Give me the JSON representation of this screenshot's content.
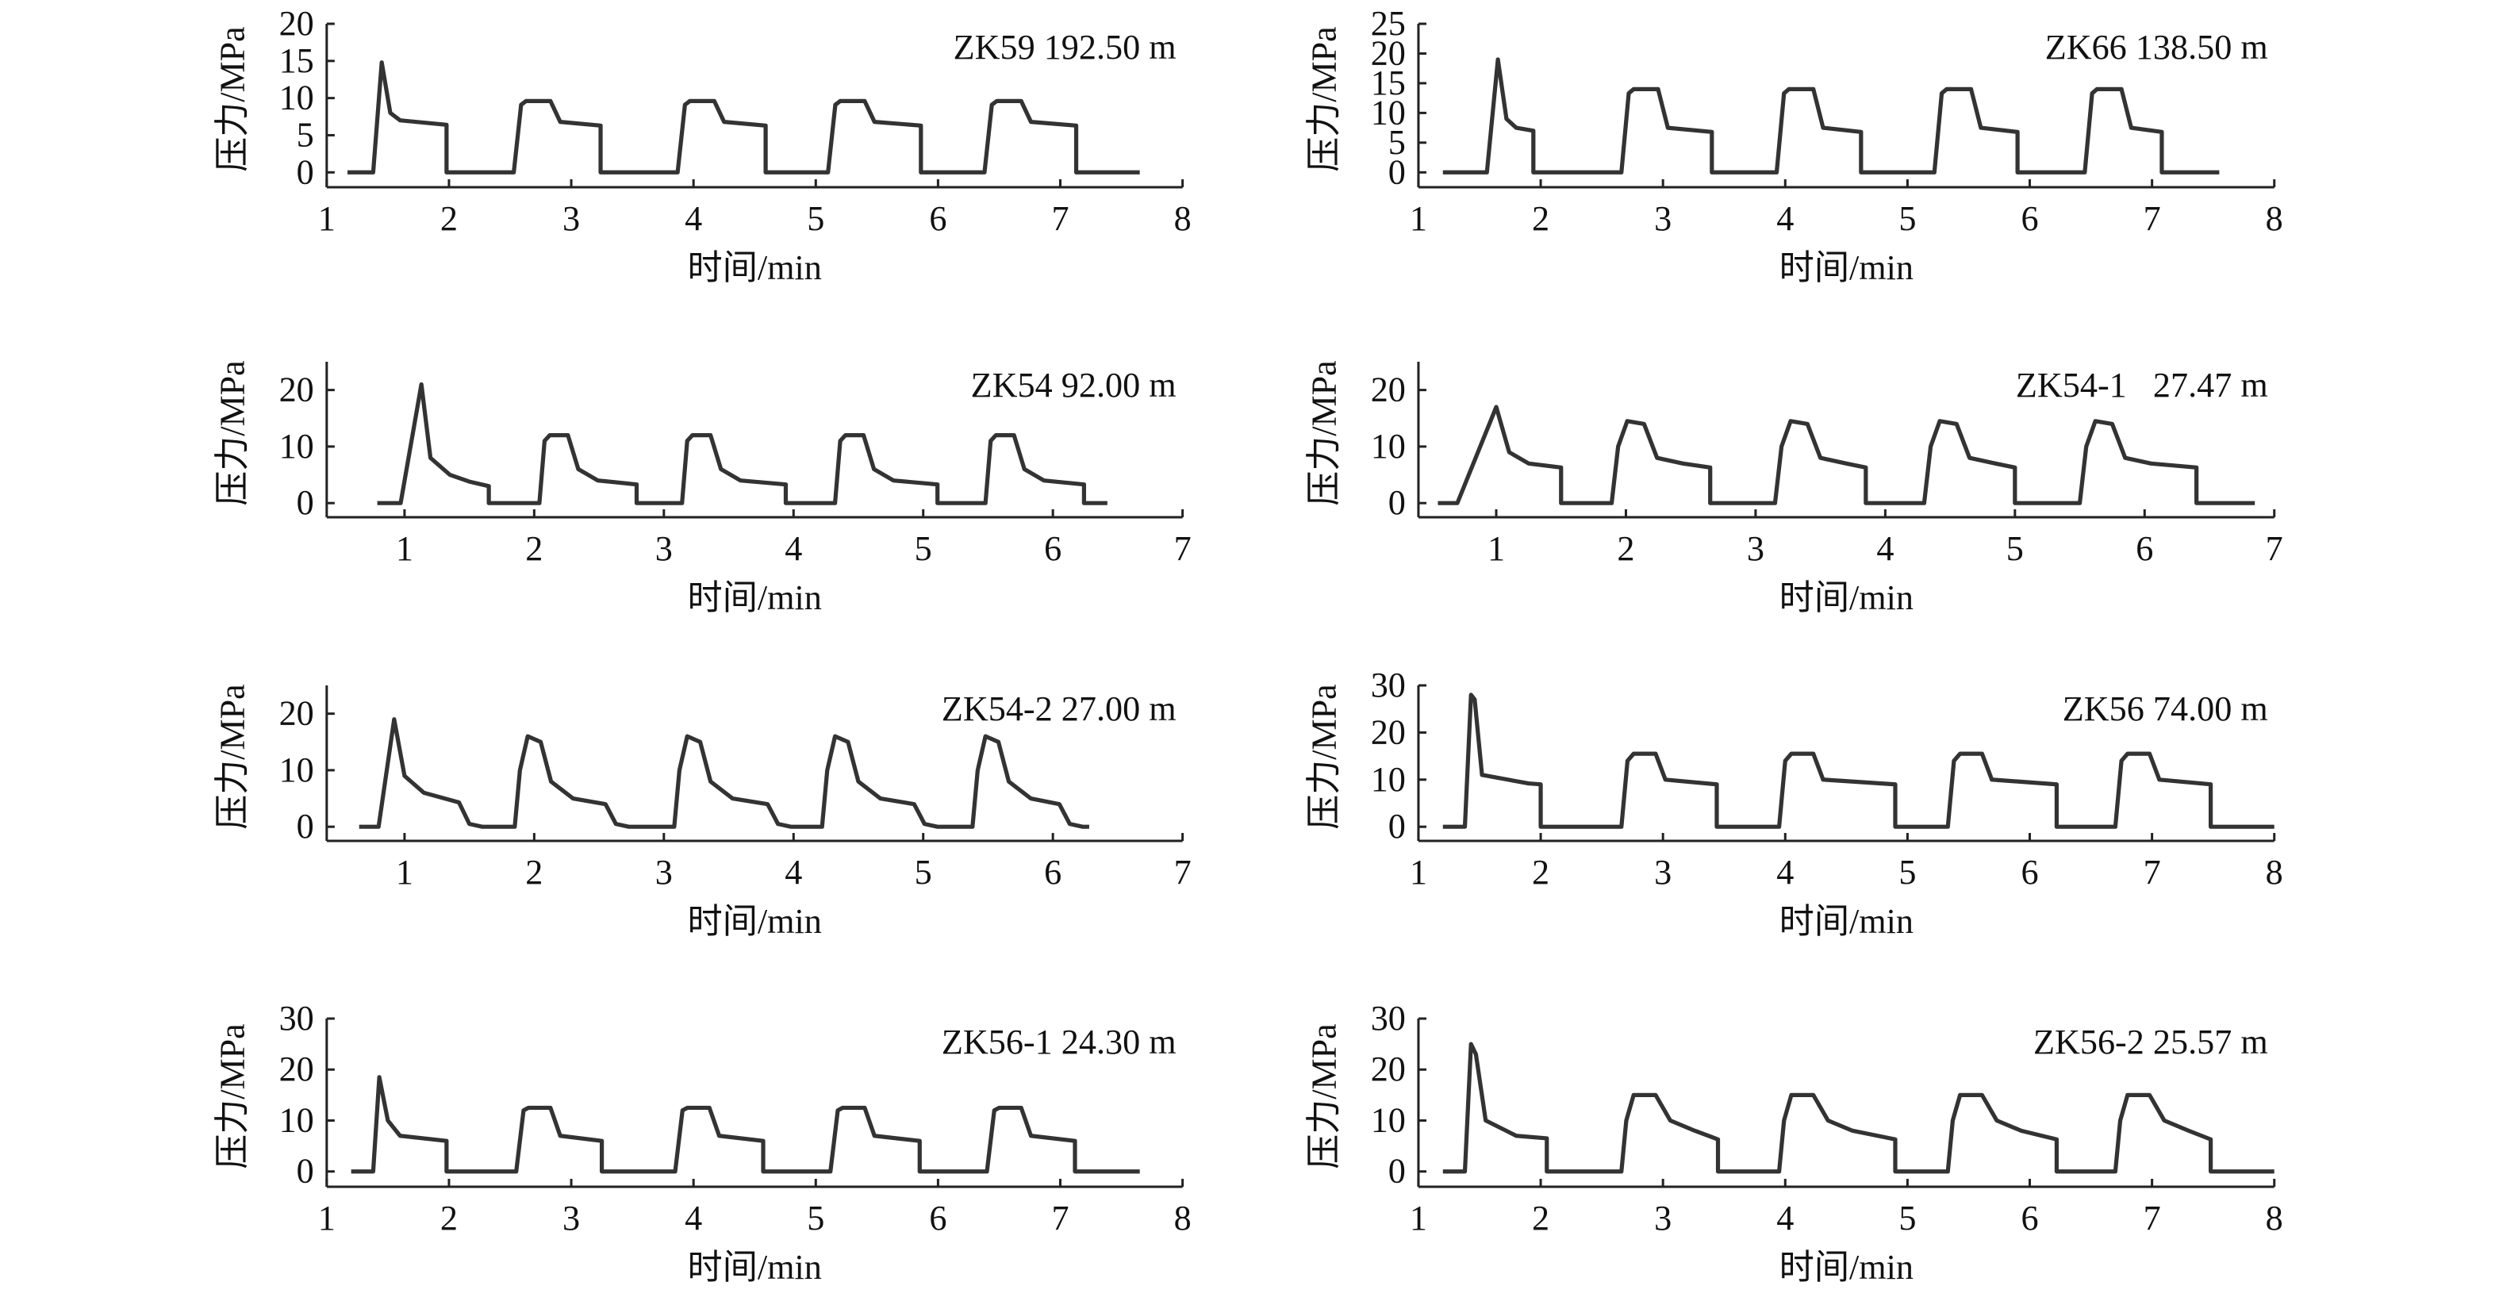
{
  "chart_data": [
    {
      "type": "line",
      "title": "ZK59 192.50 m",
      "x_label": "时间/min",
      "y_label": "压力/MPa",
      "color": "#333333",
      "xlim": [
        1,
        8
      ],
      "xticks": [
        1,
        2,
        3,
        4,
        5,
        6,
        7,
        8
      ],
      "ylim": [
        -2,
        20
      ],
      "yticks": [
        0,
        5,
        10,
        15,
        20
      ],
      "x": [
        1.17,
        1.38,
        1.45,
        1.52,
        1.6,
        1.98,
        1.98,
        2.53,
        2.59,
        2.63,
        2.83,
        2.91,
        3.24,
        3.24,
        3.87,
        3.93,
        3.97,
        4.17,
        4.25,
        4.59,
        4.59,
        5.1,
        5.16,
        5.2,
        5.4,
        5.48,
        5.86,
        5.86,
        6.38,
        6.44,
        6.48,
        6.68,
        6.76,
        7.13,
        7.13,
        7.65
      ],
      "values": [
        0,
        0,
        14.8,
        8,
        7,
        6.4,
        0,
        0,
        9.1,
        9.6,
        9.6,
        6.8,
        6.3,
        0,
        0,
        9.1,
        9.6,
        9.6,
        6.8,
        6.3,
        0,
        0,
        9.1,
        9.6,
        9.6,
        6.8,
        6.3,
        0,
        0,
        9.1,
        9.6,
        9.6,
        6.8,
        6.3,
        0,
        0
      ]
    },
    {
      "type": "line",
      "title": "ZK66 138.50 m",
      "x_label": "时间/min",
      "y_label": "压力/MPa",
      "color": "#333333",
      "xlim": [
        1,
        8
      ],
      "xticks": [
        1,
        2,
        3,
        4,
        5,
        6,
        7,
        8
      ],
      "ylim": [
        -2.5,
        25
      ],
      "yticks": [
        0,
        5,
        10,
        15,
        20,
        25
      ],
      "x": [
        1.2,
        1.56,
        1.65,
        1.72,
        1.8,
        1.94,
        1.94,
        2.66,
        2.72,
        2.76,
        2.96,
        3.04,
        3.4,
        3.4,
        3.93,
        3.99,
        4.03,
        4.23,
        4.31,
        4.62,
        4.62,
        5.22,
        5.28,
        5.32,
        5.52,
        5.6,
        5.9,
        5.9,
        6.45,
        6.51,
        6.55,
        6.75,
        6.83,
        7.08,
        7.08,
        7.55
      ],
      "values": [
        0,
        0,
        19,
        9,
        7.5,
        7,
        0,
        0,
        13.3,
        14,
        14,
        7.5,
        6.8,
        0,
        0,
        13.3,
        14,
        14,
        7.5,
        6.8,
        0,
        0,
        13.3,
        14,
        14,
        7.5,
        6.8,
        0,
        0,
        13.3,
        14,
        14,
        7.5,
        6.8,
        0,
        0
      ]
    },
    {
      "type": "line",
      "title": "ZK54 92.00 m",
      "x_label": "时间/min",
      "y_label": "压力/MPa",
      "color": "#333333",
      "xlim": [
        0.4,
        7
      ],
      "xticks": [
        1,
        2,
        3,
        4,
        5,
        6,
        7
      ],
      "ylim": [
        -2.5,
        25
      ],
      "yticks": [
        0,
        10,
        20
      ],
      "x": [
        0.79,
        0.97,
        1.13,
        1.2,
        1.35,
        1.5,
        1.65,
        1.65,
        2.04,
        2.08,
        2.12,
        2.26,
        2.34,
        2.49,
        2.79,
        2.79,
        3.14,
        3.18,
        3.22,
        3.36,
        3.44,
        3.59,
        3.94,
        3.94,
        4.32,
        4.36,
        4.4,
        4.54,
        4.62,
        4.77,
        5.11,
        5.11,
        5.48,
        5.52,
        5.56,
        5.7,
        5.78,
        5.93,
        6.24,
        6.24,
        6.42
      ],
      "values": [
        0,
        0,
        21,
        8,
        5,
        3.8,
        3,
        0,
        0,
        11,
        12,
        12,
        6,
        4,
        3.3,
        0,
        0,
        11,
        12,
        12,
        6,
        4,
        3.3,
        0,
        0,
        11,
        12,
        12,
        6,
        4,
        3.3,
        0,
        0,
        11,
        12,
        12,
        6,
        4,
        3.3,
        0,
        0
      ]
    },
    {
      "type": "line",
      "title": "ZK54-1   27.47 m",
      "x_label": "时间/min",
      "y_label": "压力/MPa",
      "color": "#333333",
      "xlim": [
        0.4,
        7
      ],
      "xticks": [
        1,
        2,
        3,
        4,
        5,
        6,
        7
      ],
      "ylim": [
        -2.5,
        25
      ],
      "yticks": [
        0,
        10,
        20
      ],
      "x": [
        0.55,
        0.7,
        1.0,
        1.1,
        1.25,
        1.5,
        1.5,
        1.89,
        1.94,
        2.01,
        2.14,
        2.24,
        2.44,
        2.65,
        2.65,
        3.15,
        3.2,
        3.27,
        3.4,
        3.5,
        3.7,
        3.85,
        3.85,
        4.3,
        4.35,
        4.42,
        4.55,
        4.65,
        4.85,
        5.0,
        5.0,
        5.5,
        5.55,
        5.62,
        5.75,
        5.85,
        6.05,
        6.4,
        6.4,
        6.85
      ],
      "values": [
        0,
        0,
        17,
        9,
        7,
        6.3,
        0,
        0,
        10,
        14.5,
        14,
        8,
        7,
        6.3,
        0,
        0,
        10,
        14.5,
        14,
        8,
        7,
        6.3,
        0,
        0,
        10,
        14.5,
        14,
        8,
        7,
        6.3,
        0,
        0,
        10,
        14.5,
        14,
        8,
        7,
        6.3,
        0,
        0
      ]
    },
    {
      "type": "line",
      "title": "ZK54-2 27.00 m",
      "x_label": "时间/min",
      "y_label": "压力/MPa",
      "color": "#333333",
      "xlim": [
        0.4,
        7
      ],
      "xticks": [
        1,
        2,
        3,
        4,
        5,
        6,
        7
      ],
      "ylim": [
        -2.5,
        25
      ],
      "yticks": [
        0,
        10,
        20
      ],
      "x": [
        0.65,
        0.8,
        0.92,
        1.0,
        1.15,
        1.42,
        1.5,
        1.6,
        1.85,
        1.89,
        1.95,
        2.05,
        2.13,
        2.3,
        2.55,
        2.63,
        2.73,
        3.08,
        3.12,
        3.18,
        3.28,
        3.36,
        3.53,
        3.8,
        3.88,
        3.98,
        4.22,
        4.26,
        4.32,
        4.42,
        4.5,
        4.67,
        4.93,
        5.01,
        5.11,
        5.38,
        5.42,
        5.48,
        5.58,
        5.66,
        5.83,
        6.05,
        6.13,
        6.23,
        6.28
      ],
      "values": [
        0,
        0,
        19,
        9,
        6,
        4.3,
        0.5,
        0,
        0,
        10,
        16,
        15,
        8,
        5,
        4,
        0.5,
        0,
        0,
        10,
        16,
        15,
        8,
        5,
        4,
        0.5,
        0,
        0,
        10,
        16,
        15,
        8,
        5,
        4,
        0.5,
        0,
        0,
        10,
        16,
        15,
        8,
        5,
        4,
        0.5,
        0,
        0
      ]
    },
    {
      "type": "line",
      "title": "ZK56 74.00 m",
      "x_label": "时间/min",
      "y_label": "压力/MPa",
      "color": "#333333",
      "xlim": [
        1,
        8
      ],
      "xticks": [
        1,
        2,
        3,
        4,
        5,
        6,
        7,
        8
      ],
      "ylim": [
        -3,
        30
      ],
      "yticks": [
        0,
        10,
        20,
        30
      ],
      "x": [
        1.2,
        1.38,
        1.43,
        1.46,
        1.52,
        1.9,
        2.0,
        2.0,
        2.66,
        2.71,
        2.76,
        2.94,
        3.02,
        3.44,
        3.44,
        3.95,
        4.0,
        4.05,
        4.23,
        4.31,
        4.9,
        4.9,
        5.33,
        5.38,
        5.43,
        5.61,
        5.69,
        6.22,
        6.22,
        6.7,
        6.75,
        6.8,
        6.98,
        7.06,
        7.48,
        7.48,
        8.0
      ],
      "values": [
        0,
        0,
        28,
        27,
        11,
        9.2,
        9,
        0,
        0,
        14,
        15.5,
        15.5,
        10,
        9,
        0,
        0,
        14,
        15.5,
        15.5,
        10,
        9,
        0,
        0,
        14,
        15.5,
        15.5,
        10,
        9,
        0,
        0,
        14,
        15.5,
        15.5,
        10,
        9,
        0,
        0
      ]
    },
    {
      "type": "line",
      "title": "ZK56-1 24.30 m",
      "x_label": "时间/min",
      "y_label": "压力/MPa",
      "color": "#333333",
      "xlim": [
        1,
        8
      ],
      "xticks": [
        1,
        2,
        3,
        4,
        5,
        6,
        7,
        8
      ],
      "ylim": [
        -3,
        30
      ],
      "yticks": [
        0,
        10,
        20,
        30
      ],
      "x": [
        1.2,
        1.38,
        1.43,
        1.5,
        1.6,
        1.98,
        1.98,
        2.55,
        2.61,
        2.65,
        2.83,
        2.91,
        3.25,
        3.25,
        3.85,
        3.91,
        3.95,
        4.13,
        4.21,
        4.57,
        4.57,
        5.12,
        5.18,
        5.22,
        5.4,
        5.48,
        5.85,
        5.85,
        6.4,
        6.46,
        6.5,
        6.68,
        6.76,
        7.12,
        7.12,
        7.65
      ],
      "values": [
        0,
        0,
        18.5,
        10,
        7,
        6,
        0,
        0,
        12,
        12.5,
        12.5,
        7,
        6,
        0,
        0,
        12,
        12.5,
        12.5,
        7,
        6,
        0,
        0,
        12,
        12.5,
        12.5,
        7,
        6,
        0,
        0,
        12,
        12.5,
        12.5,
        7,
        6,
        0,
        0
      ]
    },
    {
      "type": "line",
      "title": "ZK56-2 25.57 m",
      "x_label": "时间/min",
      "y_label": "压力/MPa",
      "color": "#333333",
      "xlim": [
        1,
        8
      ],
      "xticks": [
        1,
        2,
        3,
        4,
        5,
        6,
        7,
        8
      ],
      "ylim": [
        -3,
        30
      ],
      "yticks": [
        0,
        10,
        20,
        30
      ],
      "x": [
        1.2,
        1.38,
        1.43,
        1.47,
        1.55,
        1.8,
        2.05,
        2.05,
        2.66,
        2.7,
        2.76,
        2.94,
        3.06,
        3.26,
        3.45,
        3.45,
        3.95,
        3.99,
        4.05,
        4.23,
        4.35,
        4.55,
        4.9,
        4.9,
        5.33,
        5.37,
        5.43,
        5.61,
        5.73,
        5.93,
        6.22,
        6.22,
        6.7,
        6.74,
        6.8,
        6.98,
        7.1,
        7.3,
        7.48,
        7.48,
        8.0
      ],
      "values": [
        0,
        0,
        25,
        23,
        10,
        7,
        6.5,
        0,
        0,
        10,
        15,
        15,
        10,
        8,
        6.3,
        0,
        0,
        10,
        15,
        15,
        10,
        8,
        6.3,
        0,
        0,
        10,
        15,
        15,
        10,
        8,
        6.3,
        0,
        0,
        10,
        15,
        15,
        10,
        8,
        6.3,
        0,
        0
      ]
    }
  ]
}
